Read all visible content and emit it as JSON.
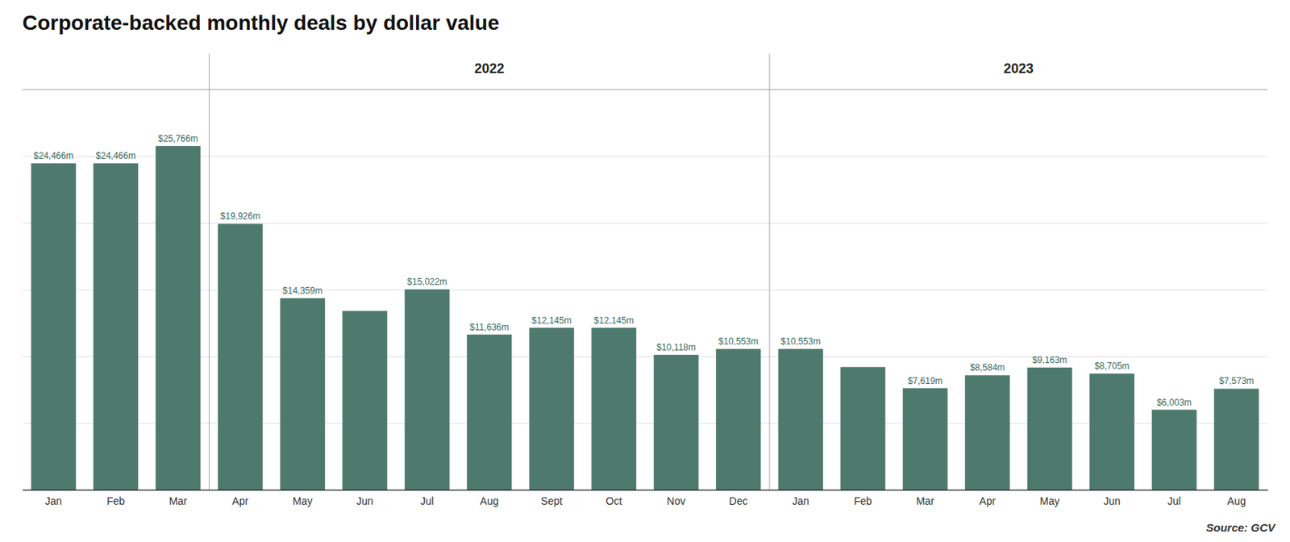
{
  "chart_data": {
    "type": "bar",
    "title": "Corporate-backed monthly deals by dollar value",
    "source": "Source: GCV",
    "color": "#4d7a6c",
    "categories": [
      "Jan",
      "Feb",
      "Mar",
      "Apr",
      "May",
      "Jun",
      "Jul",
      "Aug",
      "Sept",
      "Oct",
      "Nov",
      "Dec",
      "Jan",
      "Feb",
      "Mar",
      "Apr",
      "May",
      "Jun",
      "Jul",
      "Aug"
    ],
    "values": [
      24466,
      24466,
      25766,
      19926,
      14359,
      13400,
      15022,
      11636,
      12145,
      12145,
      10118,
      10553,
      10553,
      9200,
      7619,
      8584,
      9163,
      8705,
      6003,
      7573
    ],
    "value_labels": [
      "$24,466m",
      "$24,466m",
      "$25,766m",
      "$19,926m",
      "$14,359m",
      null,
      "$15,022m",
      "$11,636m",
      "$12,145m",
      "$12,145m",
      "$10,118m",
      "$10,553m",
      "$10,553m",
      null,
      "$7,619m",
      "$8,584m",
      "$9,163m",
      "$8,705m",
      "$6,003m",
      "$7,573m"
    ],
    "ylim": [
      0,
      30000
    ],
    "yticks": [
      0,
      5000,
      10000,
      15000,
      20000,
      25000,
      30000
    ],
    "grid": true,
    "tick_labels": "x",
    "dividers": [
      2.5,
      11.5
    ],
    "annotations": [
      {
        "text": "2022",
        "x": 7.0
      },
      {
        "text": "2023",
        "x": 15.5
      }
    ]
  }
}
